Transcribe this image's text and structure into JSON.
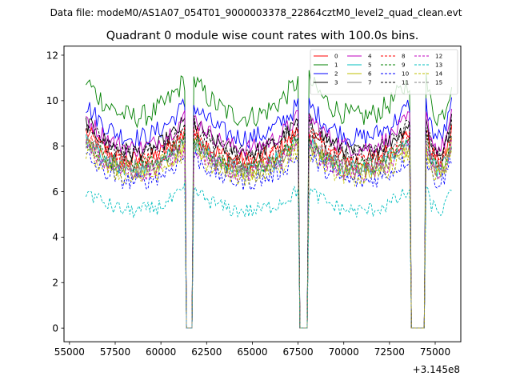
{
  "figure": {
    "suptitle": "Data file: modeM0/AS1A07_054T01_9000003378_22864cztM0_level2_quad_clean.evt"
  },
  "chart_data": {
    "type": "line",
    "title": "Quadrant 0 module wise count rates with 100.0s bins.",
    "xlabel": "",
    "ylabel": "",
    "x_offset_label": "+3.145e8",
    "xlim": [
      54700,
      76400
    ],
    "ylim": [
      -0.6,
      12.4
    ],
    "x_ticks": [
      55000,
      57500,
      60000,
      62500,
      65000,
      67500,
      70000,
      72500,
      75000
    ],
    "x_tick_labels": [
      "55000",
      "57500",
      "60000",
      "62500",
      "65000",
      "67500",
      "70000",
      "72500",
      "75000"
    ],
    "y_ticks": [
      0,
      2,
      4,
      6,
      8,
      10,
      12
    ],
    "y_tick_labels": [
      "0",
      "2",
      "4",
      "6",
      "8",
      "10",
      "12"
    ],
    "legend_position": "top-right",
    "legend_columns": 4,
    "gaps": [
      [
        61300,
        61800
      ],
      [
        67500,
        68100
      ],
      [
        73600,
        74500
      ]
    ],
    "series": [
      {
        "name": "0",
        "color": "#ff0000",
        "dashed": false,
        "base": 8.0,
        "noise": 0.45
      },
      {
        "name": "1",
        "color": "#008000",
        "dashed": false,
        "base": 10.1,
        "noise": 0.5
      },
      {
        "name": "2",
        "color": "#0000ff",
        "dashed": false,
        "base": 9.1,
        "noise": 0.45
      },
      {
        "name": "3",
        "color": "#000000",
        "dashed": false,
        "base": 8.4,
        "noise": 0.4
      },
      {
        "name": "4",
        "color": "#bf00bf",
        "dashed": false,
        "base": 8.6,
        "noise": 0.4
      },
      {
        "name": "5",
        "color": "#00bfbf",
        "dashed": false,
        "base": 7.6,
        "noise": 0.4
      },
      {
        "name": "6",
        "color": "#bfbf00",
        "dashed": false,
        "base": 7.5,
        "noise": 0.4
      },
      {
        "name": "7",
        "color": "#808080",
        "dashed": false,
        "base": 7.7,
        "noise": 0.4
      },
      {
        "name": "8",
        "color": "#ff0000",
        "dashed": true,
        "base": 7.9,
        "noise": 0.4
      },
      {
        "name": "9",
        "color": "#008000",
        "dashed": true,
        "base": 7.7,
        "noise": 0.4
      },
      {
        "name": "10",
        "color": "#0000ff",
        "dashed": true,
        "base": 7.0,
        "noise": 0.4
      },
      {
        "name": "11",
        "color": "#000000",
        "dashed": true,
        "base": 8.3,
        "noise": 0.4
      },
      {
        "name": "12",
        "color": "#bf00bf",
        "dashed": true,
        "base": 7.4,
        "noise": 0.4
      },
      {
        "name": "13",
        "color": "#00bfbf",
        "dashed": true,
        "base": 5.6,
        "noise": 0.35
      },
      {
        "name": "14",
        "color": "#bfbf00",
        "dashed": true,
        "base": 7.2,
        "noise": 0.4
      },
      {
        "name": "15",
        "color": "#808080",
        "dashed": true,
        "base": 7.5,
        "noise": 0.4
      }
    ],
    "x_start": 55900,
    "x_end": 75900,
    "bin_size": 100
  }
}
